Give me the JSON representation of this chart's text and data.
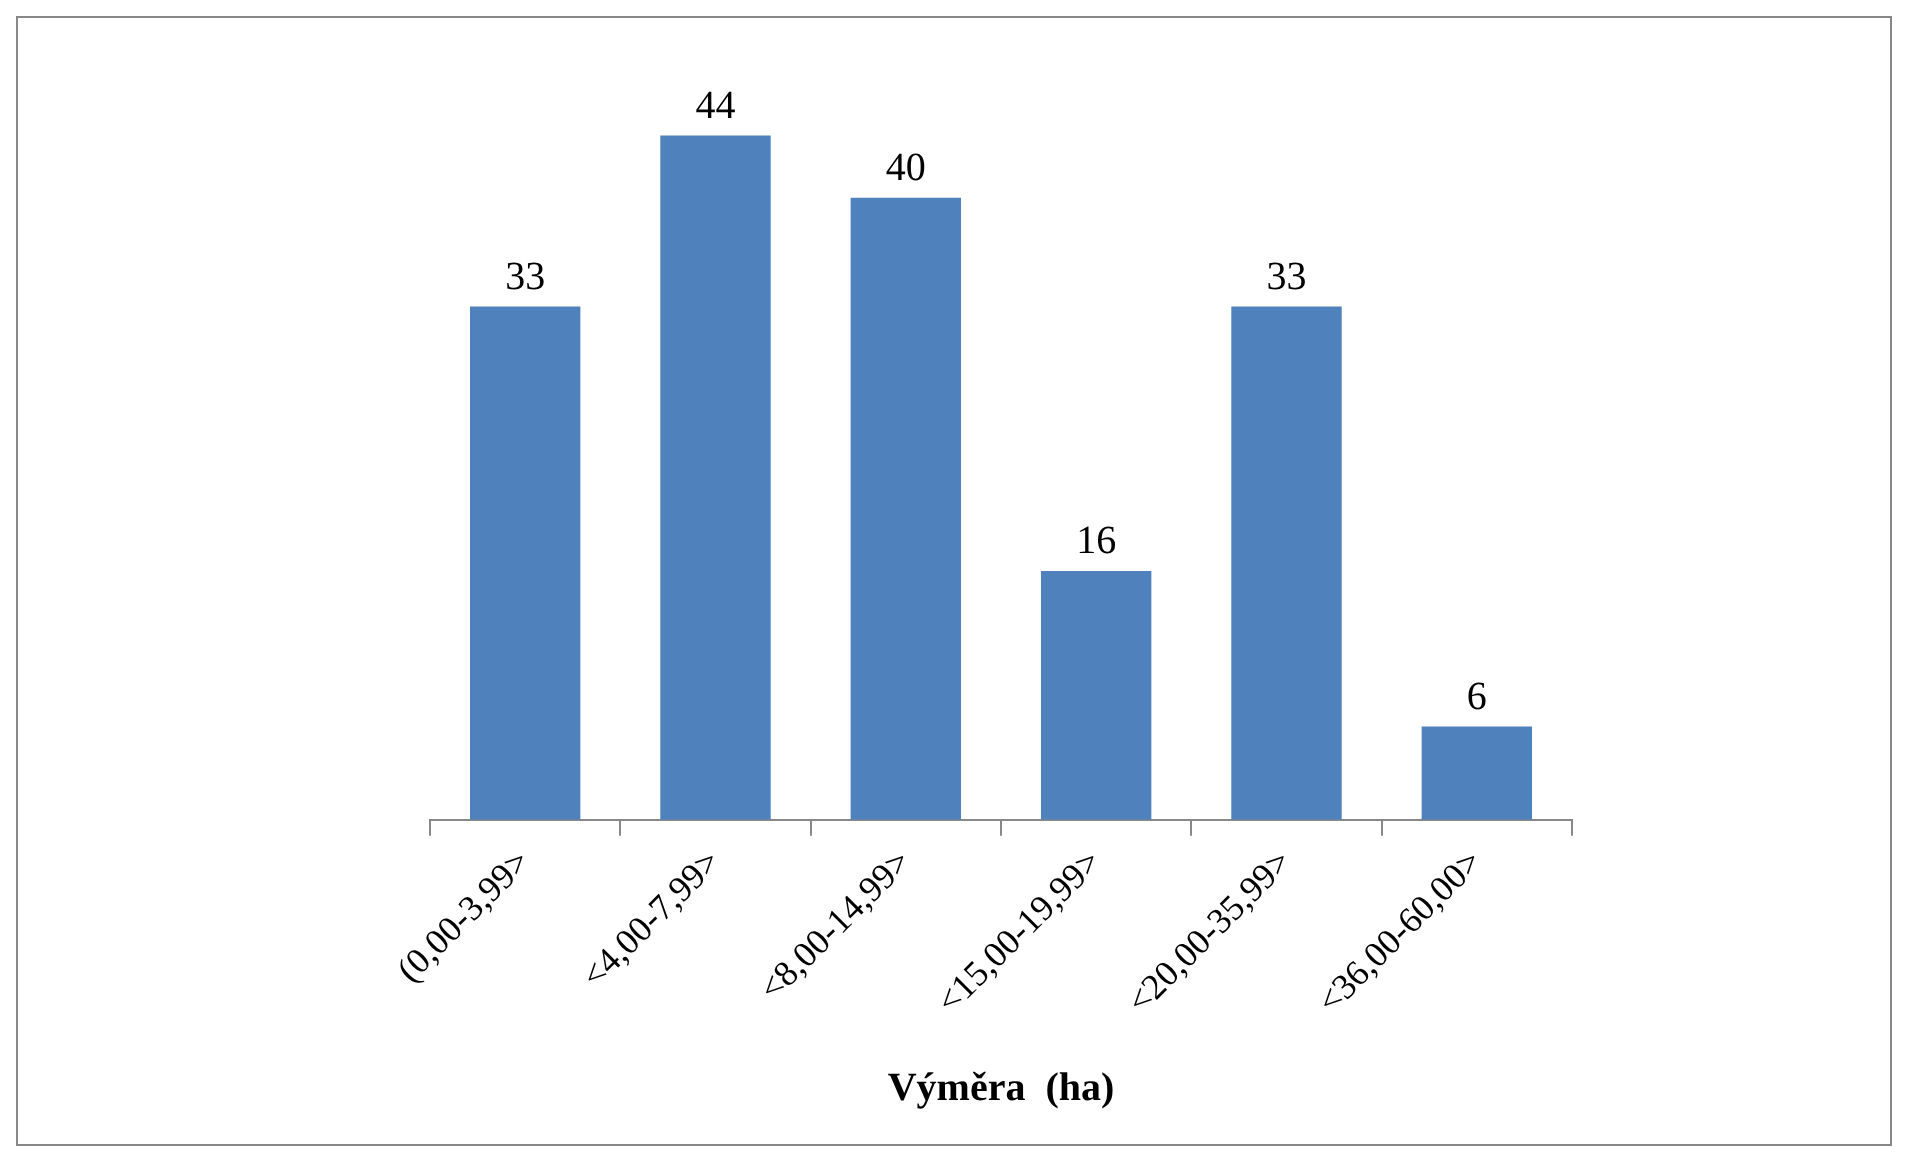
{
  "chart_data": {
    "type": "bar",
    "xlabel": "Výměra  (ha)",
    "categories": [
      "(0,00-3,99>",
      "<4,00-7,99>",
      "<8,00-14,99>",
      "<15,00-19,99>",
      "<20,00-35,99>",
      "<36,00-60,00>"
    ],
    "values": [
      33,
      44,
      40,
      16,
      33,
      6
    ],
    "color": "#4f81bd",
    "data_labels": true,
    "legend": false
  }
}
